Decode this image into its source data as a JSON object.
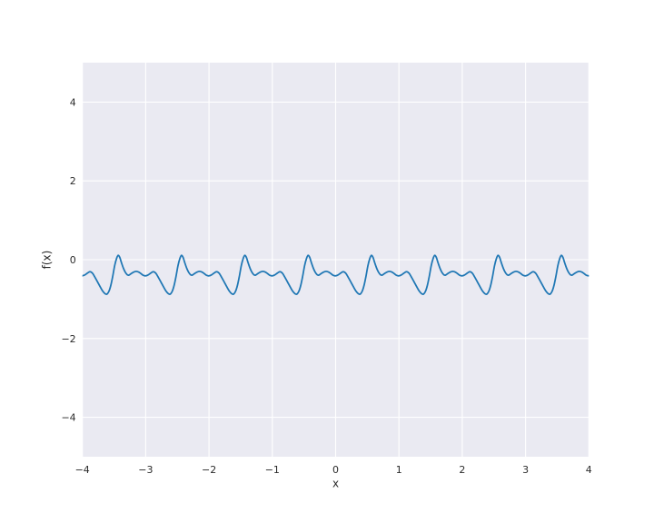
{
  "chart_data": {
    "type": "line",
    "title": "",
    "xlabel": "x",
    "ylabel": "f(x)",
    "xlim": [
      -4,
      4
    ],
    "ylim": [
      -5,
      5
    ],
    "grid": true,
    "legend": "none",
    "x_ticks": [
      -4,
      -3,
      -2,
      -1,
      0,
      1,
      2,
      3,
      4
    ],
    "x_tick_labels": [
      "−4",
      "−3",
      "−2",
      "−1",
      "0",
      "1",
      "2",
      "3",
      "4"
    ],
    "y_ticks": [
      -4,
      -2,
      0,
      2,
      4
    ],
    "y_tick_labels": [
      "−4",
      "−2",
      "0",
      "2",
      "4"
    ],
    "style": {
      "axes_background": "#eaeaf2",
      "grid_color": "#ffffff",
      "line_color": "#1f77b4",
      "line_width": 1.75,
      "tick_color": "#2b2b2b",
      "label_color": "#2b2b2b"
    },
    "series": [
      {
        "name": "f(x)",
        "periodic": true,
        "period": 1,
        "x_range": [
          -4,
          4
        ],
        "description": "periodic multi-harmonic wave repeated each unit of x; values below give one period sampled as [x mod 1, f(x)]",
        "period_samples": [
          [
            0.0,
            -0.41
          ],
          [
            0.04,
            -0.385
          ],
          [
            0.08,
            -0.34
          ],
          [
            0.12,
            -0.305
          ],
          [
            0.16,
            -0.345
          ],
          [
            0.2,
            -0.45
          ],
          [
            0.24,
            -0.565
          ],
          [
            0.28,
            -0.685
          ],
          [
            0.32,
            -0.795
          ],
          [
            0.36,
            -0.865
          ],
          [
            0.39,
            -0.872
          ],
          [
            0.42,
            -0.8
          ],
          [
            0.45,
            -0.645
          ],
          [
            0.48,
            -0.415
          ],
          [
            0.51,
            -0.15
          ],
          [
            0.54,
            0.03
          ],
          [
            0.565,
            0.11
          ],
          [
            0.59,
            0.06
          ],
          [
            0.62,
            -0.09
          ],
          [
            0.65,
            -0.225
          ],
          [
            0.68,
            -0.325
          ],
          [
            0.71,
            -0.385
          ],
          [
            0.735,
            -0.392
          ],
          [
            0.77,
            -0.355
          ],
          [
            0.81,
            -0.315
          ],
          [
            0.85,
            -0.297
          ],
          [
            0.89,
            -0.315
          ],
          [
            0.93,
            -0.36
          ],
          [
            0.965,
            -0.4
          ]
        ]
      }
    ]
  }
}
